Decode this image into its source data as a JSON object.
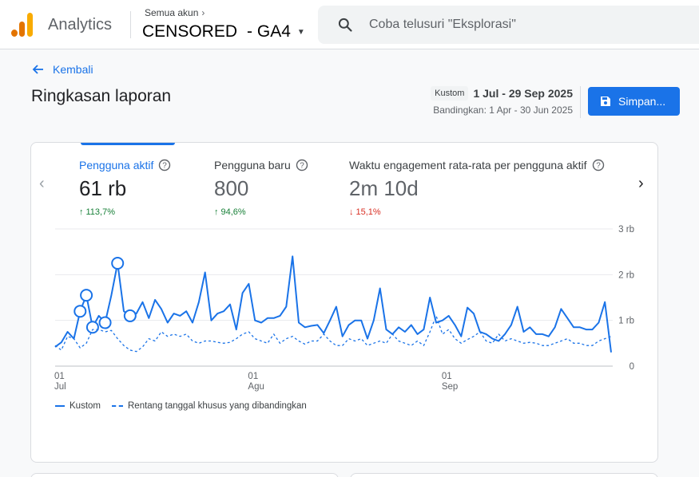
{
  "header": {
    "app_name": "Analytics",
    "account_label": "Semua akun",
    "property_name": "CENSORED",
    "property_suffix": "- GA4",
    "search_placeholder": "Coba telusuri \"Eksplorasi\""
  },
  "page": {
    "back_label": "Kembali",
    "title": "Ringkasan laporan",
    "date_chip": "Kustom",
    "date_range": "1 Jul - 29 Sep 2025",
    "compare_text": "Bandingkan: 1 Apr - 30 Jun 2025",
    "save_label": "Simpan..."
  },
  "metrics": [
    {
      "label": "Pengguna aktif",
      "value": "61 rb",
      "delta": "113,7%",
      "direction": "up"
    },
    {
      "label": "Pengguna baru",
      "value": "800",
      "delta": "94,6%",
      "direction": "up"
    },
    {
      "label": "Waktu engagement rata-rata per pengguna aktif",
      "value": "2m 10d",
      "delta": "15,1%",
      "direction": "down"
    }
  ],
  "legend": {
    "current": "Kustom",
    "comparison": "Rentang tanggal khusus yang dibandingkan"
  },
  "colors": {
    "accent": "#1a73e8",
    "up": "#188038",
    "down": "#d93025"
  },
  "chart_data": {
    "type": "line",
    "y_tick_labels": [
      "0",
      "1 rb",
      "2 rb",
      "3 rb"
    ],
    "y_ticks": [
      0,
      1000,
      2000,
      3000
    ],
    "ylim": [
      0,
      3000
    ],
    "x_ticks": [
      {
        "index": 0,
        "day": "01",
        "month": "Jul"
      },
      {
        "index": 31,
        "day": "01",
        "month": "Agu"
      },
      {
        "index": 62,
        "day": "01",
        "month": "Sep"
      }
    ],
    "grid": true,
    "legend_position": "bottom-left",
    "series": [
      {
        "name": "Kustom",
        "style": "solid",
        "values": [
          420,
          520,
          750,
          600,
          1200,
          1550,
          850,
          1100,
          950,
          1550,
          2250,
          1200,
          1100,
          1150,
          1400,
          1050,
          1450,
          1250,
          950,
          1150,
          1100,
          1200,
          950,
          1400,
          2050,
          1000,
          1150,
          1200,
          1350,
          800,
          1600,
          1800,
          1000,
          950,
          1050,
          1050,
          1100,
          1300,
          2400,
          950,
          850,
          880,
          900,
          720,
          1000,
          1300,
          650,
          900,
          1000,
          1000,
          600,
          1000,
          1700,
          800,
          700,
          850,
          750,
          900,
          700,
          800,
          1500,
          950,
          1000,
          1100,
          900,
          650,
          1280,
          1150,
          750,
          700,
          600,
          550,
          700,
          900,
          1300,
          750,
          850,
          700,
          700,
          650,
          850,
          1250,
          1050,
          850,
          850,
          800,
          800,
          950,
          1400,
          300
        ],
        "highlighted_indices": [
          4,
          5,
          6,
          8,
          10,
          12
        ]
      },
      {
        "name": "Rentang tanggal khusus yang dibandingkan",
        "style": "dashed",
        "values": [
          450,
          350,
          650,
          600,
          400,
          500,
          800,
          800,
          750,
          780,
          600,
          450,
          350,
          320,
          420,
          600,
          550,
          750,
          650,
          700,
          650,
          700,
          550,
          500,
          550,
          550,
          520,
          500,
          520,
          600,
          700,
          750,
          600,
          550,
          500,
          700,
          500,
          600,
          650,
          550,
          480,
          550,
          550,
          700,
          550,
          450,
          450,
          600,
          550,
          600,
          450,
          500,
          550,
          500,
          700,
          550,
          500,
          450,
          550,
          450,
          750,
          1100,
          700,
          800,
          600,
          500,
          580,
          650,
          750,
          550,
          500,
          700,
          550,
          600,
          550,
          500,
          520,
          500,
          450,
          450,
          500,
          550,
          600,
          500,
          500,
          450,
          450,
          550,
          600,
          650
        ]
      }
    ]
  }
}
